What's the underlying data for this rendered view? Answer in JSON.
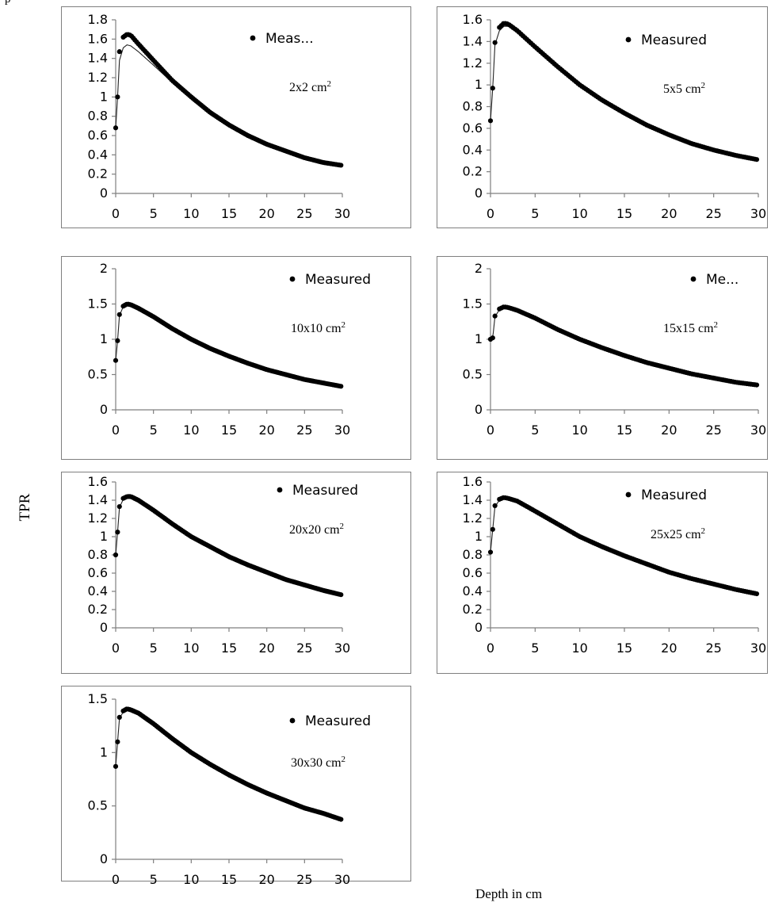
{
  "caption_fragment": "p",
  "figure": {
    "ylabel": "TPR",
    "xlabel": "Depth in cm"
  },
  "chart_data": [
    {
      "type": "scatter",
      "field": "2x2 cm",
      "field_sup": "2",
      "legend": "Meas...",
      "xlim": [
        0,
        30
      ],
      "ylim": [
        0,
        1.8
      ],
      "xticks": [
        "0",
        "5",
        "10",
        "15",
        "20",
        "25",
        "30"
      ],
      "yticks": [
        "0",
        "0.2",
        "0.4",
        "0.6",
        "0.8",
        "1",
        "1.2",
        "1.4",
        "1.6",
        "1.8"
      ],
      "series": [
        {
          "name": "Measured",
          "x": [
            0,
            0.25,
            0.5,
            1.0,
            1.5,
            2.0,
            3,
            5,
            7.5,
            10,
            12.5,
            15,
            17.5,
            20,
            22.5,
            25,
            27.5,
            30
          ],
          "y": [
            0.68,
            1.0,
            1.47,
            1.62,
            1.65,
            1.64,
            1.55,
            1.38,
            1.17,
            1.0,
            0.84,
            0.71,
            0.6,
            0.51,
            0.44,
            0.37,
            0.32,
            0.29
          ]
        },
        {
          "name": "",
          "x": [
            0,
            0.25,
            0.5,
            1.0,
            1.5,
            2.0,
            3,
            5,
            7.5,
            10,
            12.5,
            15,
            17.5,
            20,
            22.5,
            25,
            27.5,
            30
          ],
          "y": [
            0.68,
            1.0,
            1.38,
            1.51,
            1.54,
            1.53,
            1.47,
            1.33,
            1.15,
            0.99,
            0.84,
            0.71,
            0.6,
            0.51,
            0.44,
            0.37,
            0.32,
            0.29
          ]
        }
      ]
    },
    {
      "type": "scatter",
      "field": "5x5 cm",
      "field_sup": "2",
      "legend": "Measured",
      "xlim": [
        0,
        30
      ],
      "ylim": [
        0,
        1.6
      ],
      "xticks": [
        "0",
        "5",
        "10",
        "15",
        "20",
        "25",
        "30"
      ],
      "yticks": [
        "0",
        "0.2",
        "0.4",
        "0.6",
        "0.8",
        "1",
        "1.2",
        "1.4",
        "1.6"
      ],
      "series": [
        {
          "name": "Measured",
          "x": [
            0,
            0.25,
            0.5,
            1.0,
            1.5,
            2.0,
            3,
            5,
            7.5,
            10,
            12.5,
            15,
            17.5,
            20,
            22.5,
            25,
            27.5,
            30
          ],
          "y": [
            0.67,
            0.97,
            1.39,
            1.53,
            1.57,
            1.56,
            1.5,
            1.35,
            1.17,
            1.0,
            0.86,
            0.74,
            0.63,
            0.54,
            0.46,
            0.4,
            0.35,
            0.31
          ]
        },
        {
          "name": "",
          "x": [
            0,
            0.25,
            0.5,
            1.0,
            1.5,
            2.0,
            3,
            5,
            7.5,
            10,
            12.5,
            15,
            17.5,
            20,
            22.5,
            25,
            27.5,
            30
          ],
          "y": [
            0.67,
            0.97,
            1.37,
            1.5,
            1.54,
            1.54,
            1.49,
            1.35,
            1.17,
            1.0,
            0.86,
            0.74,
            0.63,
            0.54,
            0.46,
            0.4,
            0.35,
            0.31
          ]
        }
      ]
    },
    {
      "type": "scatter",
      "field": "10x10 cm",
      "field_sup": "2",
      "legend": "Measured",
      "xlim": [
        0,
        30
      ],
      "ylim": [
        0,
        2
      ],
      "xticks": [
        "0",
        "5",
        "10",
        "15",
        "20",
        "25",
        "30"
      ],
      "yticks": [
        "0",
        "0.5",
        "1",
        "1.5",
        "2"
      ],
      "series": [
        {
          "name": "Measured",
          "x": [
            0,
            0.25,
            0.5,
            1.0,
            1.5,
            2.0,
            3,
            5,
            7.5,
            10,
            12.5,
            15,
            17.5,
            20,
            22.5,
            25,
            27.5,
            30
          ],
          "y": [
            0.7,
            0.98,
            1.35,
            1.47,
            1.5,
            1.49,
            1.44,
            1.32,
            1.15,
            1.0,
            0.87,
            0.76,
            0.66,
            0.57,
            0.5,
            0.43,
            0.38,
            0.33
          ]
        },
        {
          "name": "",
          "x": [
            0,
            0.25,
            0.5,
            1.0,
            1.5,
            2.0,
            3,
            5,
            7.5,
            10,
            12.5,
            15,
            17.5,
            20,
            22.5,
            25,
            27.5,
            30
          ],
          "y": [
            0.7,
            0.98,
            1.34,
            1.46,
            1.49,
            1.49,
            1.44,
            1.32,
            1.15,
            1.0,
            0.87,
            0.76,
            0.66,
            0.57,
            0.5,
            0.43,
            0.38,
            0.33
          ]
        }
      ]
    },
    {
      "type": "scatter",
      "field": "15x15 cm",
      "field_sup": "2",
      "legend": "Me...",
      "xlim": [
        0,
        30
      ],
      "ylim": [
        0,
        2
      ],
      "xticks": [
        "0",
        "5",
        "10",
        "15",
        "20",
        "25",
        "30"
      ],
      "yticks": [
        "0",
        "0.5",
        "1",
        "1.5",
        "2"
      ],
      "series": [
        {
          "name": "Measured",
          "x": [
            0,
            0.25,
            0.5,
            1.0,
            1.5,
            2.0,
            3,
            5,
            7.5,
            10,
            12.5,
            15,
            17.5,
            20,
            22.5,
            25,
            27.5,
            30
          ],
          "y": [
            1.0,
            1.02,
            1.33,
            1.43,
            1.46,
            1.45,
            1.41,
            1.3,
            1.14,
            1.0,
            0.88,
            0.77,
            0.67,
            0.59,
            0.51,
            0.45,
            0.39,
            0.35
          ]
        },
        {
          "name": "",
          "x": [
            0,
            0.25,
            0.5,
            1.0,
            1.5,
            2.0,
            3,
            5,
            7.5,
            10,
            12.5,
            15,
            17.5,
            20,
            22.5,
            25,
            27.5,
            30
          ],
          "y": [
            1.0,
            1.02,
            1.32,
            1.42,
            1.45,
            1.45,
            1.41,
            1.3,
            1.14,
            1.0,
            0.88,
            0.77,
            0.67,
            0.59,
            0.51,
            0.45,
            0.39,
            0.35
          ]
        }
      ]
    },
    {
      "type": "scatter",
      "field": "20x20 cm",
      "field_sup": "2",
      "legend": "Measured",
      "xlim": [
        0,
        30
      ],
      "ylim": [
        0,
        1.6
      ],
      "xticks": [
        "0",
        "5",
        "10",
        "15",
        "20",
        "25",
        "30"
      ],
      "yticks": [
        "0",
        "0.2",
        "0.4",
        "0.6",
        "0.8",
        "1",
        "1.2",
        "1.4",
        "1.6"
      ],
      "series": [
        {
          "name": "Measured",
          "x": [
            0,
            0.25,
            0.5,
            1.0,
            1.5,
            2.0,
            3,
            5,
            7.5,
            10,
            12.5,
            15,
            17.5,
            20,
            22.5,
            25,
            27.5,
            30
          ],
          "y": [
            0.8,
            1.05,
            1.33,
            1.42,
            1.44,
            1.44,
            1.4,
            1.29,
            1.14,
            1.0,
            0.89,
            0.78,
            0.69,
            0.61,
            0.53,
            0.47,
            0.41,
            0.36
          ]
        },
        {
          "name": "",
          "x": [
            0,
            0.25,
            0.5,
            1.0,
            1.5,
            2.0,
            3,
            5,
            7.5,
            10,
            12.5,
            15,
            17.5,
            20,
            22.5,
            25,
            27.5,
            30
          ],
          "y": [
            0.8,
            1.05,
            1.32,
            1.41,
            1.44,
            1.43,
            1.4,
            1.29,
            1.14,
            1.0,
            0.89,
            0.78,
            0.69,
            0.61,
            0.53,
            0.47,
            0.41,
            0.36
          ]
        }
      ]
    },
    {
      "type": "scatter",
      "field": "25x25 cm",
      "field_sup": "2",
      "legend": "Measured",
      "xlim": [
        0,
        30
      ],
      "ylim": [
        0,
        1.6
      ],
      "xticks": [
        "0",
        "5",
        "10",
        "15",
        "20",
        "25",
        "30"
      ],
      "yticks": [
        "0",
        "0.2",
        "0.4",
        "0.6",
        "0.8",
        "1",
        "1.2",
        "1.4",
        "1.6"
      ],
      "series": [
        {
          "name": "Measured",
          "x": [
            0,
            0.25,
            0.5,
            1.0,
            1.5,
            2.0,
            3,
            5,
            7.5,
            10,
            12.5,
            15,
            17.5,
            20,
            22.5,
            25,
            27.5,
            30
          ],
          "y": [
            0.83,
            1.08,
            1.34,
            1.41,
            1.43,
            1.42,
            1.39,
            1.28,
            1.14,
            1.0,
            0.89,
            0.79,
            0.7,
            0.61,
            0.54,
            0.48,
            0.42,
            0.37
          ]
        },
        {
          "name": "",
          "x": [
            0,
            0.25,
            0.5,
            1.0,
            1.5,
            2.0,
            3,
            5,
            7.5,
            10,
            12.5,
            15,
            17.5,
            20,
            22.5,
            25,
            27.5,
            30
          ],
          "y": [
            0.83,
            1.08,
            1.33,
            1.4,
            1.42,
            1.42,
            1.39,
            1.28,
            1.14,
            1.0,
            0.89,
            0.79,
            0.7,
            0.61,
            0.54,
            0.48,
            0.42,
            0.37
          ]
        }
      ]
    },
    {
      "type": "scatter",
      "field": "30x30 cm",
      "field_sup": "2",
      "legend": "Measured",
      "xlim": [
        0,
        30
      ],
      "ylim": [
        0,
        1.5
      ],
      "xticks": [
        "0",
        "5",
        "10",
        "15",
        "20",
        "25",
        "30"
      ],
      "yticks": [
        "0",
        "0.5",
        "1",
        "1.5"
      ],
      "series": [
        {
          "name": "Measured",
          "x": [
            0,
            0.25,
            0.5,
            1.0,
            1.5,
            2.0,
            3,
            5,
            7.5,
            10,
            12.5,
            15,
            17.5,
            20,
            22.5,
            25,
            27.5,
            30
          ],
          "y": [
            0.87,
            1.1,
            1.33,
            1.39,
            1.41,
            1.4,
            1.37,
            1.27,
            1.13,
            1.0,
            0.89,
            0.79,
            0.7,
            0.62,
            0.55,
            0.48,
            0.43,
            0.37
          ]
        },
        {
          "name": "",
          "x": [
            0,
            0.25,
            0.5,
            1.0,
            1.5,
            2.0,
            3,
            5,
            7.5,
            10,
            12.5,
            15,
            17.5,
            20,
            22.5,
            25,
            27.5,
            30
          ],
          "y": [
            0.87,
            1.1,
            1.32,
            1.38,
            1.4,
            1.4,
            1.37,
            1.27,
            1.13,
            1.0,
            0.89,
            0.79,
            0.7,
            0.62,
            0.55,
            0.48,
            0.43,
            0.37
          ]
        }
      ]
    }
  ]
}
